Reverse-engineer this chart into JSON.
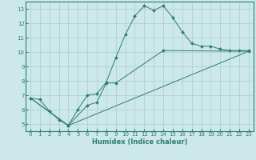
{
  "xlabel": "Humidex (Indice chaleur)",
  "bg_color": "#cce8e8",
  "line_color": "#2e7d6e",
  "grid_color": "#aacece",
  "xlim": [
    -0.5,
    23.5
  ],
  "ylim": [
    4.5,
    13.5
  ],
  "xticks": [
    0,
    1,
    2,
    3,
    4,
    5,
    6,
    7,
    8,
    9,
    10,
    11,
    12,
    13,
    14,
    15,
    16,
    17,
    18,
    19,
    20,
    21,
    22,
    23
  ],
  "yticks": [
    5,
    6,
    7,
    8,
    9,
    10,
    11,
    12,
    13
  ],
  "curve1_x": [
    0,
    1,
    2,
    3,
    4,
    5,
    6,
    7,
    8,
    9,
    10,
    11,
    12,
    13,
    14,
    15,
    16,
    17,
    18,
    19,
    20,
    21,
    22,
    23
  ],
  "curve1_y": [
    6.8,
    6.7,
    5.9,
    5.3,
    4.9,
    6.0,
    7.0,
    7.1,
    7.9,
    9.6,
    11.2,
    12.5,
    13.2,
    12.9,
    13.2,
    12.4,
    11.4,
    10.6,
    10.4,
    10.4,
    10.2,
    10.1,
    10.1,
    10.1
  ],
  "curve2_x": [
    0,
    4,
    6,
    7,
    8,
    9,
    14,
    23
  ],
  "curve2_y": [
    6.8,
    4.9,
    6.3,
    6.5,
    7.85,
    7.85,
    10.1,
    10.05
  ],
  "curve3_x": [
    0,
    4,
    23
  ],
  "curve3_y": [
    6.8,
    4.9,
    10.05
  ],
  "marker_size": 2.0,
  "linewidth": 0.7,
  "tick_fontsize": 5.0,
  "xlabel_fontsize": 6.0
}
